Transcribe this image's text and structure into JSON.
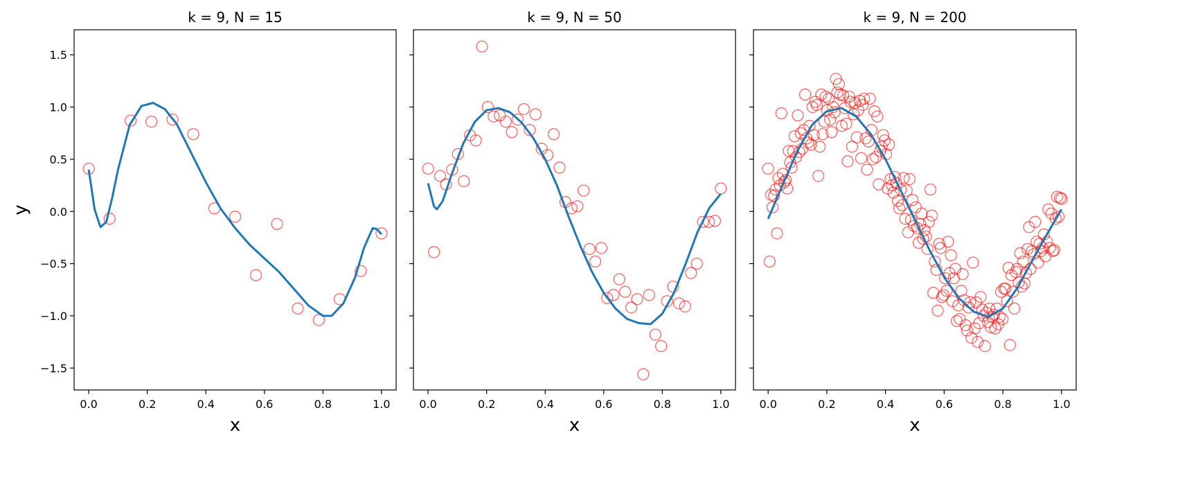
{
  "chart_data": [
    {
      "type": "scatter",
      "title": "k = 9, N = 15",
      "xlabel": "x",
      "ylabel": "y",
      "xlim": [
        -0.05,
        1.05
      ],
      "ylim": [
        -1.71,
        1.74
      ],
      "xticks": [
        {
          "value": 0,
          "label": "0.0"
        },
        0.2,
        0.4,
        0.6,
        0.8,
        {
          "value": 1,
          "label": "1.0"
        }
      ],
      "yticks": [
        {
          "value": -1.5,
          "label": "−1.5"
        },
        {
          "value": -1,
          "label": "−1.0"
        },
        {
          "value": -0.5,
          "label": "−0.5"
        },
        {
          "value": 0,
          "label": "0.0"
        },
        0.5,
        {
          "value": 1,
          "label": "1.0"
        },
        1.5
      ],
      "show_ytick_labels": true,
      "series": [
        {
          "type": "scatter",
          "color": "#ff0000",
          "x": [
            0,
            0.071,
            0.143,
            0.214,
            0.286,
            0.357,
            0.429,
            0.5,
            0.571,
            0.643,
            0.714,
            0.786,
            0.857,
            0.929,
            1.0
          ],
          "values": [
            0.41,
            -0.07,
            0.87,
            0.86,
            0.88,
            0.74,
            0.03,
            -0.05,
            -0.61,
            -0.12,
            -0.93,
            -1.04,
            -0.84,
            -0.57,
            -0.21
          ]
        },
        {
          "type": "line",
          "color": "#1f77b4",
          "x": [
            0,
            0.02,
            0.04,
            0.06,
            0.08,
            0.1,
            0.14,
            0.18,
            0.22,
            0.26,
            0.3,
            0.35,
            0.4,
            0.45,
            0.5,
            0.55,
            0.6,
            0.65,
            0.7,
            0.75,
            0.8,
            0.83,
            0.87,
            0.91,
            0.94,
            0.97,
            0.985,
            1.0
          ],
          "values": [
            0.4,
            0.02,
            -0.15,
            -0.1,
            0.13,
            0.4,
            0.83,
            1.01,
            1.04,
            0.98,
            0.84,
            0.56,
            0.28,
            0.03,
            -0.16,
            -0.32,
            -0.45,
            -0.58,
            -0.74,
            -0.9,
            -1.0,
            -1.0,
            -0.88,
            -0.63,
            -0.35,
            -0.16,
            -0.17,
            -0.22
          ]
        }
      ]
    },
    {
      "type": "scatter",
      "title": "k = 9, N = 50",
      "xlabel": "x",
      "xlim": [
        -0.05,
        1.05
      ],
      "ylim": [
        -1.71,
        1.74
      ],
      "xticks": [
        {
          "value": 0,
          "label": "0.0"
        },
        0.2,
        0.4,
        0.6,
        0.8,
        {
          "value": 1,
          "label": "1.0"
        }
      ],
      "yticks": [
        -1.5,
        -1,
        -0.5,
        0,
        0.5,
        1,
        1.5
      ],
      "show_ytick_labels": false,
      "series": [
        {
          "type": "scatter",
          "color": "#ff0000",
          "x": [
            0,
            0.02,
            0.041,
            0.061,
            0.082,
            0.102,
            0.122,
            0.143,
            0.163,
            0.184,
            0.204,
            0.224,
            0.245,
            0.265,
            0.286,
            0.306,
            0.327,
            0.347,
            0.367,
            0.388,
            0.408,
            0.429,
            0.449,
            0.469,
            0.49,
            0.51,
            0.531,
            0.551,
            0.571,
            0.592,
            0.612,
            0.633,
            0.653,
            0.673,
            0.694,
            0.714,
            0.735,
            0.755,
            0.776,
            0.796,
            0.816,
            0.837,
            0.857,
            0.878,
            0.898,
            0.918,
            0.939,
            0.959,
            0.98,
            1.0
          ],
          "values": [
            0.41,
            -0.39,
            0.34,
            0.26,
            0.4,
            0.55,
            0.29,
            0.73,
            0.68,
            1.58,
            1.0,
            0.91,
            0.92,
            0.86,
            0.76,
            0.88,
            0.98,
            0.78,
            0.93,
            0.6,
            0.54,
            0.74,
            0.42,
            0.09,
            0.03,
            0.05,
            0.2,
            -0.36,
            -0.48,
            -0.35,
            -0.83,
            -0.8,
            -0.65,
            -0.77,
            -0.92,
            -0.84,
            -1.56,
            -0.8,
            -1.18,
            -1.29,
            -0.86,
            -0.72,
            -0.88,
            -0.91,
            -0.59,
            -0.5,
            -0.1,
            -0.1,
            -0.09,
            0.22
          ]
        },
        {
          "type": "line",
          "color": "#1f77b4",
          "x": [
            0,
            0.02,
            0.03,
            0.05,
            0.08,
            0.12,
            0.16,
            0.2,
            0.24,
            0.28,
            0.32,
            0.36,
            0.4,
            0.44,
            0.48,
            0.52,
            0.56,
            0.6,
            0.64,
            0.68,
            0.72,
            0.76,
            0.8,
            0.84,
            0.88,
            0.92,
            0.96,
            1.0
          ],
          "values": [
            0.27,
            0.05,
            0.02,
            0.1,
            0.35,
            0.65,
            0.86,
            0.97,
            0.99,
            0.95,
            0.85,
            0.7,
            0.5,
            0.25,
            -0.05,
            -0.33,
            -0.58,
            -0.78,
            -0.93,
            -1.03,
            -1.07,
            -1.08,
            -0.98,
            -0.78,
            -0.5,
            -0.2,
            0.03,
            0.17
          ]
        }
      ]
    },
    {
      "type": "scatter",
      "title": "k = 9, N = 200",
      "xlabel": "x",
      "xlim": [
        -0.05,
        1.05
      ],
      "ylim": [
        -1.71,
        1.74
      ],
      "xticks": [
        {
          "value": 0,
          "label": "0.0"
        },
        0.2,
        0.4,
        0.6,
        0.8,
        {
          "value": 1,
          "label": "1.0"
        }
      ],
      "yticks": [
        -1.5,
        -1,
        -0.5,
        0,
        0.5,
        1,
        1.5
      ],
      "show_ytick_labels": false,
      "series": [
        {
          "type": "scatter",
          "color": "#ff0000",
          "x": [
            0,
            0.005,
            0.01,
            0.015,
            0.02,
            0.025,
            0.03,
            0.035,
            0.04,
            0.045,
            0.05,
            0.055,
            0.06,
            0.065,
            0.07,
            0.075,
            0.08,
            0.085,
            0.09,
            0.095,
            0.101,
            0.106,
            0.111,
            0.116,
            0.121,
            0.126,
            0.131,
            0.136,
            0.141,
            0.146,
            0.151,
            0.156,
            0.161,
            0.166,
            0.171,
            0.176,
            0.181,
            0.186,
            0.191,
            0.196,
            0.201,
            0.206,
            0.211,
            0.216,
            0.221,
            0.226,
            0.231,
            0.236,
            0.241,
            0.246,
            0.251,
            0.256,
            0.261,
            0.266,
            0.271,
            0.276,
            0.281,
            0.286,
            0.291,
            0.296,
            0.302,
            0.307,
            0.312,
            0.317,
            0.322,
            0.327,
            0.332,
            0.337,
            0.342,
            0.347,
            0.352,
            0.357,
            0.362,
            0.367,
            0.372,
            0.377,
            0.382,
            0.387,
            0.392,
            0.397,
            0.402,
            0.407,
            0.412,
            0.417,
            0.422,
            0.427,
            0.432,
            0.437,
            0.442,
            0.447,
            0.452,
            0.457,
            0.462,
            0.467,
            0.472,
            0.477,
            0.482,
            0.487,
            0.492,
            0.497,
            0.503,
            0.508,
            0.513,
            0.518,
            0.523,
            0.528,
            0.533,
            0.538,
            0.543,
            0.548,
            0.553,
            0.558,
            0.563,
            0.568,
            0.573,
            0.578,
            0.583,
            0.588,
            0.593,
            0.598,
            0.603,
            0.608,
            0.613,
            0.618,
            0.623,
            0.628,
            0.633,
            0.638,
            0.643,
            0.648,
            0.653,
            0.658,
            0.663,
            0.668,
            0.673,
            0.678,
            0.683,
            0.688,
            0.693,
            0.698,
            0.704,
            0.709,
            0.714,
            0.719,
            0.724,
            0.729,
            0.734,
            0.739,
            0.744,
            0.749,
            0.754,
            0.759,
            0.764,
            0.769,
            0.774,
            0.779,
            0.784,
            0.789,
            0.794,
            0.799,
            0.804,
            0.809,
            0.814,
            0.819,
            0.824,
            0.829,
            0.834,
            0.839,
            0.844,
            0.849,
            0.854,
            0.859,
            0.864,
            0.869,
            0.874,
            0.879,
            0.884,
            0.889,
            0.894,
            0.899,
            0.905,
            0.91,
            0.915,
            0.92,
            0.925,
            0.93,
            0.935,
            0.94,
            0.945,
            0.95,
            0.955,
            0.96,
            0.965,
            0.97,
            0.975,
            0.98,
            0.985,
            0.99,
            0.995,
            1.0
          ],
          "values": [
            0.41,
            -0.48,
            0.16,
            0.04,
            0.15,
            0.21,
            -0.21,
            0.32,
            0.25,
            0.94,
            0.36,
            0.28,
            0.3,
            0.22,
            0.58,
            0.47,
            0.42,
            0.58,
            0.72,
            0.52,
            0.92,
            0.57,
            0.75,
            0.6,
            0.78,
            1.12,
            0.7,
            0.66,
            0.82,
            0.64,
            1.0,
            0.73,
            1.05,
            1.02,
            0.34,
            0.62,
            1.12,
            0.74,
            0.86,
            1.1,
            0.97,
            1.08,
            0.88,
            0.76,
            1.0,
            0.95,
            1.27,
            1.14,
            1.22,
            1.12,
            0.82,
            1.11,
            0.99,
            0.84,
            0.48,
            1.1,
            1.05,
            0.62,
            0.93,
            1.04,
            0.71,
            0.97,
            1.06,
            0.51,
            1.02,
            1.08,
            0.7,
            0.4,
            0.67,
            1.08,
            0.78,
            0.5,
            0.96,
            0.52,
            0.91,
            0.26,
            0.58,
            0.62,
            0.73,
            0.68,
            0.55,
            0.22,
            0.64,
            0.31,
            0.25,
            0.18,
            0.33,
            0.27,
            0.1,
            0.03,
            0.21,
            0.06,
            0.32,
            -0.07,
            0.2,
            -0.2,
            0.31,
            -0.08,
            0.11,
            -0.14,
            0.04,
            -0.16,
            -0.3,
            -0.12,
            -0.02,
            -0.26,
            -0.18,
            -0.24,
            -0.36,
            -0.1,
            0.21,
            -0.04,
            -0.78,
            -0.48,
            -0.56,
            -0.95,
            -0.31,
            -0.35,
            -0.82,
            -0.8,
            -0.64,
            -0.76,
            -0.29,
            -0.59,
            -0.42,
            -0.86,
            -0.64,
            -0.55,
            -1.05,
            -0.9,
            -1.03,
            -0.76,
            -0.6,
            -0.85,
            -1.09,
            -1.14,
            -0.92,
            -0.87,
            -1.21,
            -0.49,
            -1.12,
            -0.87,
            -1.25,
            -1.07,
            -0.82,
            -0.94,
            -1.0,
            -1.29,
            -0.97,
            -1.06,
            -0.93,
            -1.11,
            -1.01,
            -0.99,
            -1.12,
            -0.93,
            -1.08,
            -1.01,
            -0.77,
            -1.03,
            -0.74,
            -0.74,
            -0.86,
            -0.54,
            -1.28,
            -0.61,
            -0.77,
            -0.93,
            -0.58,
            -0.55,
            -0.68,
            -0.4,
            -0.72,
            -0.48,
            -0.69,
            -0.59,
            -0.36,
            -0.15,
            -0.55,
            -0.38,
            -0.41,
            -0.1,
            -0.29,
            -0.49,
            -0.31,
            -0.38,
            -0.35,
            -0.22,
            -0.43,
            -0.29,
            0.02,
            -0.35,
            -0.02,
            -0.38,
            -0.37,
            -0.07,
            0.14,
            -0.05,
            0.13,
            0.12
          ]
        },
        {
          "type": "line",
          "color": "#1f77b4",
          "x": [
            0,
            0.05,
            0.1,
            0.15,
            0.2,
            0.25,
            0.3,
            0.35,
            0.4,
            0.45,
            0.5,
            0.55,
            0.6,
            0.65,
            0.7,
            0.75,
            0.8,
            0.85,
            0.9,
            0.95,
            1.0
          ],
          "values": [
            -0.07,
            0.26,
            0.58,
            0.83,
            0.96,
            0.99,
            0.91,
            0.74,
            0.5,
            0.21,
            -0.08,
            -0.37,
            -0.63,
            -0.83,
            -0.96,
            -1.01,
            -0.93,
            -0.73,
            -0.47,
            -0.22,
            0.02
          ]
        }
      ]
    }
  ]
}
